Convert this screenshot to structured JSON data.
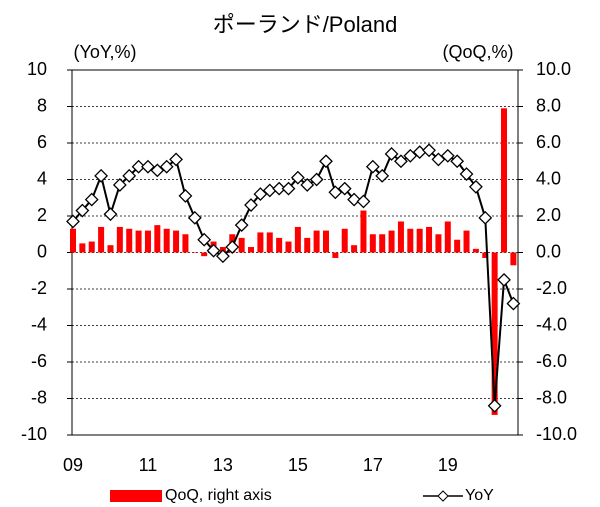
{
  "chart_data": {
    "type": "bar-line",
    "title": "ポーランド/Poland",
    "y_axis_label": "(YoY,%)",
    "y2_axis_label": "(QoQ,%)",
    "categories": [
      "09",
      null,
      null,
      null,
      null,
      null,
      null,
      null,
      "11",
      null,
      null,
      null,
      null,
      null,
      null,
      null,
      "13",
      null,
      null,
      null,
      null,
      null,
      null,
      null,
      "15",
      null,
      null,
      null,
      null,
      null,
      null,
      null,
      "17",
      null,
      null,
      null,
      null,
      null,
      null,
      null,
      "19",
      null,
      null,
      null,
      null,
      null,
      null,
      null
    ],
    "series": [
      {
        "name": "QoQ, right axis",
        "type": "bar",
        "axis": "y2",
        "color": "#ff0000",
        "values": [
          1.3,
          0.5,
          0.6,
          1.4,
          0.4,
          1.4,
          1.3,
          1.2,
          1.2,
          1.5,
          1.3,
          1.2,
          1.0,
          0.0,
          -0.2,
          0.6,
          0.3,
          1.0,
          0.8,
          0.3,
          1.1,
          1.1,
          0.8,
          0.6,
          1.4,
          0.8,
          1.2,
          1.2,
          -0.3,
          1.3,
          0.4,
          2.3,
          1.0,
          1.0,
          1.2,
          1.7,
          1.3,
          1.3,
          1.4,
          1.0,
          1.7,
          0.7,
          1.2,
          0.2,
          -0.3,
          -8.9,
          7.9,
          -0.7
        ]
      },
      {
        "name": "YoY",
        "type": "line",
        "axis": "y",
        "color": "#000000",
        "values": [
          1.7,
          2.3,
          2.9,
          4.2,
          2.1,
          3.7,
          4.2,
          4.7,
          4.7,
          4.5,
          4.7,
          5.1,
          3.1,
          1.9,
          0.7,
          0.1,
          -0.2,
          0.3,
          1.5,
          2.6,
          3.2,
          3.4,
          3.5,
          3.5,
          4.1,
          3.7,
          4.0,
          5.0,
          3.3,
          3.5,
          2.9,
          2.8,
          4.7,
          4.2,
          5.4,
          5.0,
          5.3,
          5.5,
          5.6,
          5.1,
          5.3,
          5.0,
          4.3,
          3.6,
          1.9,
          -8.4,
          -1.5,
          -2.8
        ]
      }
    ],
    "ylim": [
      -10,
      10
    ],
    "yticks": [
      -10,
      -8,
      -6,
      -4,
      -2,
      0,
      2,
      4,
      6,
      8,
      10
    ],
    "y2lim": [
      -10,
      10
    ],
    "y2ticks": [
      {
        "value": -10,
        "label": "-10.0"
      },
      {
        "value": -8,
        "label": "-8.0"
      },
      {
        "value": -6,
        "label": "-6.0"
      },
      {
        "value": -4,
        "label": "-4.0"
      },
      {
        "value": -2,
        "label": "-2.0"
      },
      {
        "value": 0,
        "label": "0.0"
      },
      {
        "value": 2,
        "label": "2.0"
      },
      {
        "value": 4,
        "label": "4.0"
      },
      {
        "value": 6,
        "label": "6.0"
      },
      {
        "value": 8,
        "label": "8.0"
      },
      {
        "value": 10,
        "label": "10.0"
      }
    ],
    "grid": true
  }
}
